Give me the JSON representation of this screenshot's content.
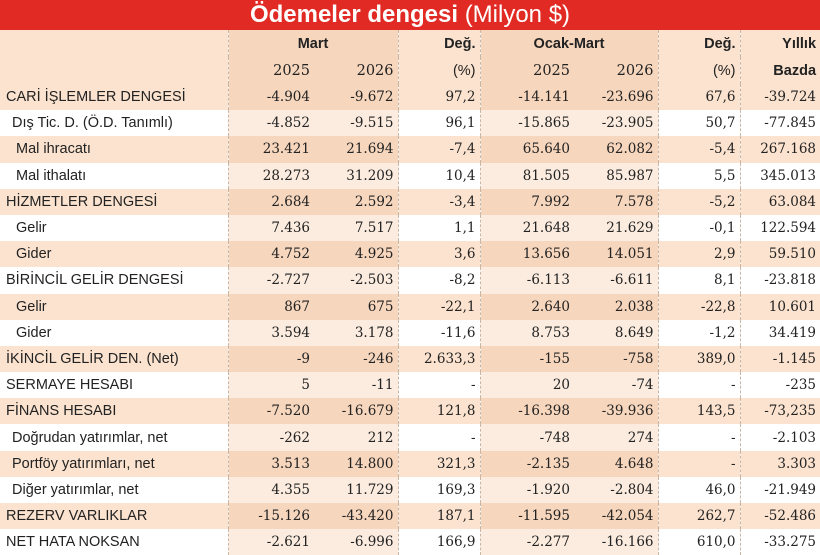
{
  "title": {
    "bold": "Ödemeler dengesi",
    "unit": "(Milyon $)"
  },
  "header": {
    "group1": "Mart",
    "group2": "Ocak-Mart",
    "deg_label": "Değ.",
    "deg_unit": "(%)",
    "yillik_line1": "Yıllık",
    "yillik_line2": "Bazda",
    "years": [
      "2025",
      "2026",
      "2025",
      "2026"
    ]
  },
  "rows": [
    {
      "label": "CARİ İŞLEMLER DENGESİ",
      "indent": 0,
      "values": [
        "-4.904",
        "-9.672",
        "97,2",
        "-14.141",
        "-23.696",
        "67,6",
        "-39.724"
      ]
    },
    {
      "label": "Dış Tic. D. (Ö.D. Tanımlı)",
      "indent": 1,
      "values": [
        "-4.852",
        "-9.515",
        "96,1",
        "-15.865",
        "-23.905",
        "50,7",
        "-77.845"
      ]
    },
    {
      "label": "Mal ihracatı",
      "indent": 2,
      "values": [
        "23.421",
        "21.694",
        "-7,4",
        "65.640",
        "62.082",
        "-5,4",
        "267.168"
      ]
    },
    {
      "label": "Mal ithalatı",
      "indent": 2,
      "values": [
        "28.273",
        "31.209",
        "10,4",
        "81.505",
        "85.987",
        "5,5",
        "345.013"
      ]
    },
    {
      "label": "HİZMETLER DENGESİ",
      "indent": 0,
      "values": [
        "2.684",
        "2.592",
        "-3,4",
        "7.992",
        "7.578",
        "-5,2",
        "63.084"
      ]
    },
    {
      "label": "Gelir",
      "indent": 2,
      "values": [
        "7.436",
        "7.517",
        "1,1",
        "21.648",
        "21.629",
        "-0,1",
        "122.594"
      ]
    },
    {
      "label": "Gider",
      "indent": 2,
      "values": [
        "4.752",
        "4.925",
        "3,6",
        "13.656",
        "14.051",
        "2,9",
        "59.510"
      ]
    },
    {
      "label": "BİRİNCİL GELİR DENGESİ",
      "indent": 0,
      "values": [
        "-2.727",
        "-2.503",
        "-8,2",
        "-6.113",
        "-6.611",
        "8,1",
        "-23.818"
      ]
    },
    {
      "label": "Gelir",
      "indent": 2,
      "values": [
        "867",
        "675",
        "-22,1",
        "2.640",
        "2.038",
        "-22,8",
        "10.601"
      ]
    },
    {
      "label": "Gider",
      "indent": 2,
      "values": [
        "3.594",
        "3.178",
        "-11,6",
        "8.753",
        "8.649",
        "-1,2",
        "34.419"
      ]
    },
    {
      "label": "İKİNCİL GELİR DEN. (Net)",
      "indent": 0,
      "values": [
        "-9",
        "-246",
        "2.633,3",
        "-155",
        "-758",
        "389,0",
        "-1.145"
      ]
    },
    {
      "label": "SERMAYE HESABI",
      "indent": 0,
      "values": [
        "5",
        "-11",
        "-",
        "20",
        "-74",
        "-",
        "-235"
      ]
    },
    {
      "label": "FİNANS HESABI",
      "indent": 0,
      "values": [
        "-7.520",
        "-16.679",
        "121,8",
        "-16.398",
        "-39.936",
        "143,5",
        "-73,235"
      ]
    },
    {
      "label": "Doğrudan yatırımlar, net",
      "indent": 1,
      "values": [
        "-262",
        "212",
        "-",
        "-748",
        "274",
        "-",
        "-2.103"
      ]
    },
    {
      "label": "Portföy yatırımları, net",
      "indent": 1,
      "values": [
        "3.513",
        "14.800",
        "321,3",
        "-2.135",
        "4.648",
        "-",
        "3.303"
      ]
    },
    {
      "label": "Diğer yatırımlar, net",
      "indent": 1,
      "values": [
        "4.355",
        "11.729",
        "169,3",
        "-1.920",
        "-2.804",
        "46,0",
        "-21.949"
      ]
    },
    {
      "label": "REZERV VARLIKLAR",
      "indent": 0,
      "values": [
        "-15.126",
        "-43.420",
        "187,1",
        "-11.595",
        "-42.054",
        "262,7",
        "-52.486"
      ]
    },
    {
      "label": "NET HATA NOKSAN",
      "indent": 0,
      "values": [
        "-2.621",
        "-6.996",
        "166,9",
        "-2.277",
        "-16.166",
        "610,0",
        "-33.275"
      ]
    }
  ]
}
